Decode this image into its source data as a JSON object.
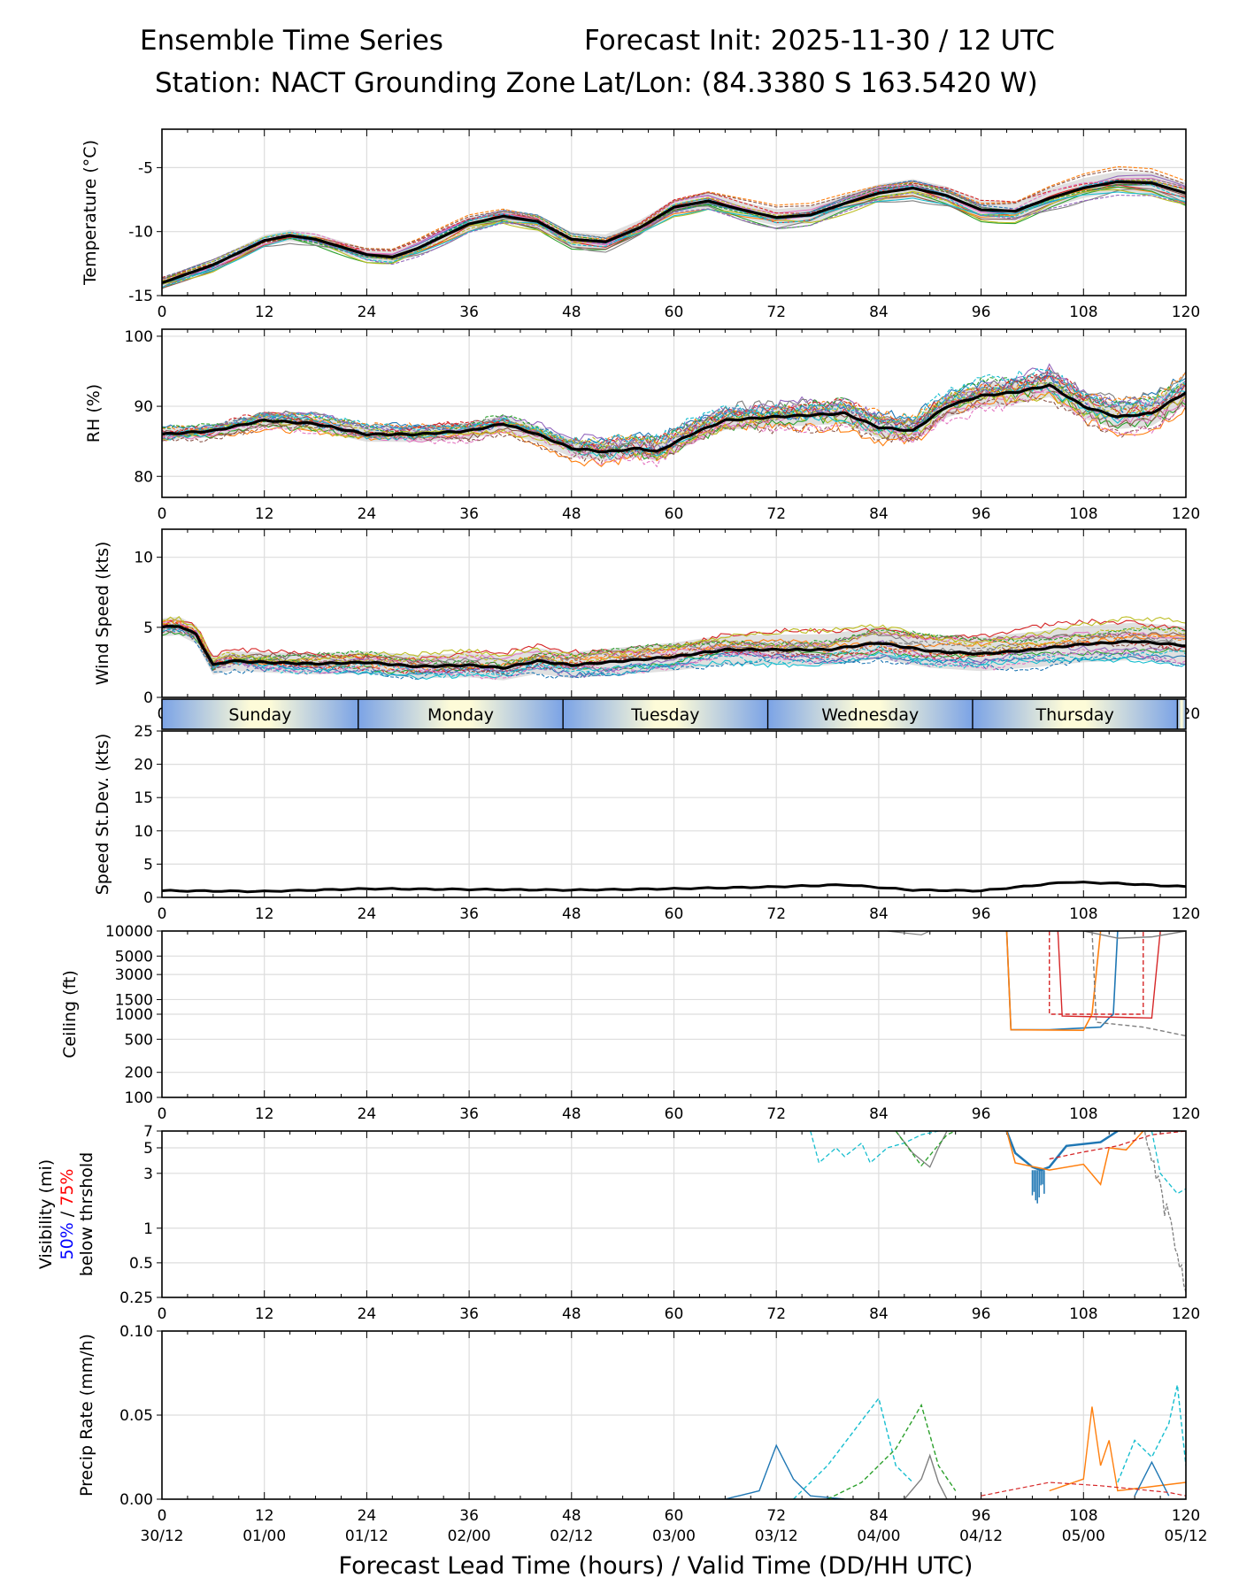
{
  "header": {
    "title_left": "Ensemble Time Series",
    "title_right": "Forecast Init: 2025-11-30 / 12 UTC",
    "station": "Station: NACT Grounding Zone",
    "latlon": "Lat/Lon: (84.3380 S 163.5420 W)"
  },
  "x_axis": {
    "label": "Forecast Lead Time (hours) / Valid Time (DD/HH UTC)",
    "lead_ticks": [
      "0",
      "12",
      "24",
      "36",
      "48",
      "60",
      "72",
      "84",
      "96",
      "108",
      "120"
    ],
    "valid_ticks": [
      "30/12",
      "01/00",
      "01/12",
      "02/00",
      "02/12",
      "03/00",
      "03/12",
      "04/00",
      "04/12",
      "05/00",
      "05/12"
    ]
  },
  "days": [
    "Sunday",
    "Monday",
    "Tuesday",
    "Wednesday",
    "Thursday"
  ],
  "colors": {
    "mean": "#000000",
    "spread": "#d3d3d3",
    "members": [
      "#1f77b4",
      "#ff7f0e",
      "#2ca02c",
      "#d62728",
      "#9467bd",
      "#8c564b",
      "#e377c2",
      "#7f7f7f",
      "#bcbd22",
      "#17becf"
    ],
    "vis_50": "#0000ff",
    "vis_75": "#ff0000",
    "day_band_edge": "#7ba3e6",
    "day_band_mid": "#fdfbd8"
  },
  "chart_data": [
    {
      "id": "temperature",
      "type": "line",
      "ylabel": "Temperature (°C)",
      "ylim": [
        -15,
        -2
      ],
      "yticks": [
        "-5",
        "-10",
        "-15"
      ],
      "ytick_values": [
        -5,
        -10,
        -15
      ],
      "x": [
        0,
        6,
        12,
        15,
        18,
        24,
        27,
        30,
        36,
        40,
        44,
        48,
        52,
        56,
        60,
        64,
        68,
        72,
        76,
        80,
        84,
        88,
        92,
        96,
        100,
        104,
        108,
        112,
        116,
        120
      ],
      "series": [
        {
          "name": "ensemble mean",
          "values": [
            -14,
            -12.6,
            -10.7,
            -10.3,
            -10.6,
            -11.8,
            -12,
            -11.3,
            -9.4,
            -8.8,
            -9.2,
            -10.6,
            -10.8,
            -9.7,
            -8.1,
            -7.6,
            -8.3,
            -8.9,
            -8.7,
            -7.8,
            -7,
            -6.6,
            -7.2,
            -8.3,
            -8.4,
            -7.4,
            -6.6,
            -6.1,
            -6.2,
            -7
          ]
        }
      ]
    },
    {
      "id": "rh",
      "type": "line",
      "ylabel": "RH (%)",
      "ylim": [
        77,
        101
      ],
      "yticks": [
        "100",
        "90",
        "80"
      ],
      "ytick_values": [
        100,
        90,
        80
      ],
      "x": [
        0,
        6,
        12,
        18,
        24,
        30,
        36,
        40,
        44,
        48,
        52,
        56,
        58,
        62,
        66,
        72,
        80,
        84,
        88,
        92,
        96,
        100,
        104,
        108,
        112,
        116,
        120
      ],
      "series": [
        {
          "name": "ensemble mean",
          "values": [
            86,
            86.5,
            88,
            87.5,
            86,
            86,
            86.5,
            87.5,
            86,
            84,
            83.5,
            84,
            83.5,
            86,
            88,
            88.5,
            89,
            87,
            86.5,
            90,
            91.5,
            92,
            93,
            90,
            88.5,
            89,
            92
          ]
        }
      ]
    },
    {
      "id": "wind_speed",
      "type": "line",
      "ylabel": "Wind Speed (kts)",
      "ylim": [
        0,
        12
      ],
      "yticks": [
        "10",
        "5",
        "0"
      ],
      "ytick_values": [
        10,
        5,
        0
      ],
      "x": [
        0,
        2,
        4,
        6,
        8,
        12,
        18,
        24,
        30,
        36,
        40,
        44,
        48,
        54,
        60,
        66,
        72,
        78,
        84,
        90,
        96,
        102,
        108,
        114,
        120
      ],
      "series": [
        {
          "name": "ensemble mean",
          "values": [
            5,
            5.1,
            4.5,
            2.3,
            2.6,
            2.5,
            2.4,
            2.5,
            2.2,
            2.3,
            2.1,
            2.6,
            2.3,
            2.6,
            2.9,
            3.4,
            3.4,
            3.4,
            3.9,
            3.3,
            3.1,
            3.4,
            3.8,
            4,
            3.7
          ]
        }
      ]
    },
    {
      "id": "speed_stdev",
      "type": "line",
      "ylabel": "Speed St.Dev. (kts)",
      "ylim": [
        0,
        25
      ],
      "yticks": [
        "25",
        "20",
        "15",
        "10",
        "5",
        "0"
      ],
      "ytick_values": [
        25,
        20,
        15,
        10,
        5,
        0
      ],
      "x": [
        0,
        12,
        24,
        36,
        48,
        60,
        72,
        80,
        88,
        96,
        106,
        112,
        120
      ],
      "series": [
        {
          "name": "std dev",
          "values": [
            1,
            0.9,
            1.3,
            1.2,
            1.1,
            1.3,
            1.6,
            1.9,
            1.1,
            1,
            2.3,
            2.1,
            1.6
          ]
        }
      ]
    },
    {
      "id": "ceiling",
      "type": "line",
      "scale": "log",
      "ylabel": "Ceiling (ft)",
      "ylim": [
        100,
        10000
      ],
      "yticks": [
        "10000",
        "5000",
        "3000",
        "1500",
        "1000",
        "500",
        "200",
        "100"
      ],
      "ytick_values": [
        10000,
        5000,
        3000,
        1500,
        1000,
        500,
        200,
        100
      ],
      "series": [
        {
          "name": "member-1",
          "x": [
            99,
            99.5,
            104,
            110,
            111,
            111.5,
            112
          ],
          "values": [
            10000,
            650,
            650,
            700,
            900,
            1000,
            10000
          ]
        },
        {
          "name": "member-2",
          "x": [
            99,
            99.5,
            108,
            109,
            110
          ],
          "values": [
            10000,
            650,
            640,
            1000,
            10000
          ]
        }
      ]
    },
    {
      "id": "visibility",
      "type": "line",
      "scale": "log",
      "ylabel": "Visibility (mi)",
      "ylabel_50": "50%",
      "ylabel_sep": " / ",
      "ylabel_75": "75%",
      "ylabel_below": "below thrshold",
      "ylim": [
        0.25,
        7
      ],
      "yticks": [
        "7",
        "5",
        "3",
        "1",
        "0.5",
        "0.25"
      ],
      "ytick_values": [
        7,
        5,
        3,
        1,
        0.5,
        0.25
      ],
      "series": [
        {
          "name": "member-1",
          "x": [
            99,
            100,
            102,
            103,
            104,
            106,
            110,
            112
          ],
          "values": [
            7,
            4.5,
            3.4,
            3.2,
            3.4,
            5.2,
            5.6,
            7
          ]
        }
      ]
    },
    {
      "id": "precip",
      "type": "line",
      "ylabel": "Precip Rate (mm/h)",
      "ylim": [
        0,
        0.1
      ],
      "yticks": [
        "0.10",
        "0.05",
        "0.00"
      ],
      "ytick_values": [
        0.1,
        0.05,
        0
      ],
      "series": [
        {
          "name": "member-1",
          "x": [
            66,
            70,
            72,
            74,
            76,
            80
          ],
          "values": [
            0,
            0.005,
            0.032,
            0.012,
            0.002,
            0
          ]
        },
        {
          "name": "member-10",
          "x": [
            74,
            78,
            81,
            84,
            86,
            88
          ],
          "values": [
            0,
            0.02,
            0.04,
            0.06,
            0.02,
            0.01
          ]
        },
        {
          "name": "member-3",
          "x": [
            78,
            82,
            86,
            89,
            91,
            93
          ],
          "values": [
            0,
            0.01,
            0.03,
            0.056,
            0.02,
            0.005
          ]
        }
      ]
    }
  ]
}
